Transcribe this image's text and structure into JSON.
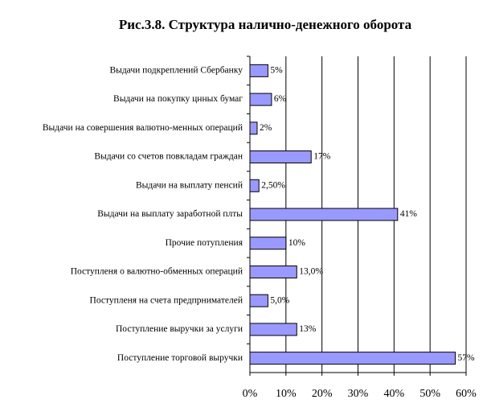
{
  "chart_data": {
    "type": "bar",
    "orientation": "horizontal",
    "title": "Рис.3.8. Структура налично-денежного оборота",
    "categories": [
      "Выдачи подкреплений Сбербанку",
      "Выдачи на покупку цнных бумаг",
      "Выдачи на совершения валютно-менных операций",
      "Выдачи со счетов повкладам граждан",
      "Выдачи на выплату пенсий",
      "Выдачи на выплату заработной плты",
      "Прочие потупления",
      "Поступленя о валютно-обменных операций",
      "Поступленя на счета предпрнимателей",
      "Поступление выручки за услуги",
      "Поступление торговой выручки"
    ],
    "values": [
      5,
      6,
      2,
      17,
      2.5,
      41,
      10,
      13,
      5,
      13,
      57
    ],
    "value_labels": [
      "5%",
      "6%",
      "2%",
      "17%",
      "2,50%",
      "41%",
      "10%",
      "13,0%",
      "5,0%",
      "13%",
      "57%"
    ],
    "color": "#9999ff",
    "xlim": [
      0,
      60
    ],
    "xticks": [
      {
        "value": 0,
        "label": "0%"
      },
      {
        "value": 10,
        "label": "10%"
      },
      {
        "value": 20,
        "label": "20%"
      },
      {
        "value": 30,
        "label": "30%"
      },
      {
        "value": 40,
        "label": "40%"
      },
      {
        "value": 50,
        "label": "50%"
      },
      {
        "value": 60,
        "label": "60%"
      }
    ],
    "grid": true
  }
}
